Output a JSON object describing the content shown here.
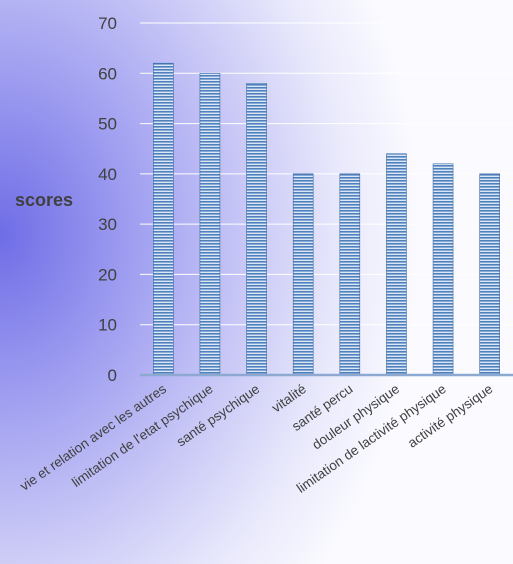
{
  "chart_data": {
    "type": "bar",
    "title": "",
    "xlabel": "",
    "ylabel": "scores",
    "ylim": [
      0,
      70
    ],
    "yticks": [
      0,
      10,
      20,
      30,
      40,
      50,
      60,
      70
    ],
    "grid": true,
    "legend": "none",
    "categories": [
      "vie et relation avec les autres",
      "limitation de l'etat psychique",
      "santé psychique",
      "vitalité",
      "santé percu",
      "douleur physique",
      "limitation de lactivité physique",
      "activité physique"
    ],
    "values": [
      62,
      60,
      58,
      40,
      40,
      44,
      42,
      40
    ],
    "colors": {
      "bar_fill": "#4f81bd",
      "bar_stripe": "#dbe6f4",
      "axis": "#8ea9d1",
      "grid": "#ffffff",
      "text": "#404040"
    }
  }
}
